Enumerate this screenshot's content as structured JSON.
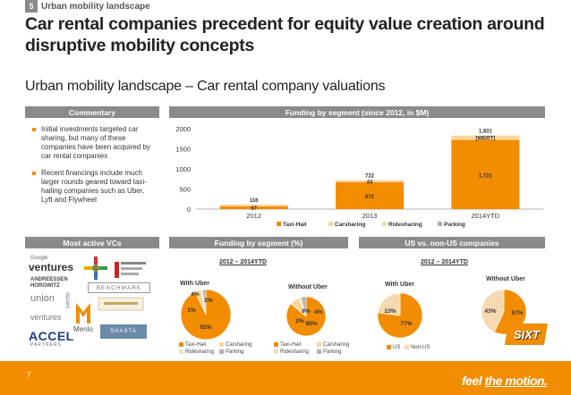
{
  "header": {
    "section_number": "5",
    "section_label": "Urban mobility landscape",
    "title": "Car rental companies precedent for equity value creation around disruptive mobility concepts",
    "subtitle": "Urban mobility landscape – Car rental company valuations"
  },
  "panels": {
    "commentary_header": "Commentary",
    "funding_header": "Funding by segment (since 2012, in $M)",
    "vcs_header": "Most active VCs",
    "funding_pct_header": "Funding by segment (%)",
    "us_header": "US vs. non-US companies"
  },
  "commentary": {
    "bullets": [
      "Initial investments targeted car sharing, but many of these companies have been acquired by car rental companies",
      "Recent financings include much larger rounds geared toward taxi-hailing companies such as Uber, Lyft and Flywheel"
    ]
  },
  "colors": {
    "orange": "#f28c00",
    "grey": "#8a8a8a",
    "light_tan": "#f5d9b0",
    "taxi": "#f28c00",
    "carsharing": "#fbd59c",
    "ridesharing": "#e8e1c0",
    "parking": "#b0b0b0"
  },
  "chart_data": [
    {
      "type": "bar",
      "title": "Funding by segment (since 2012, in $M)",
      "categories": [
        "2012",
        "2013",
        "2014YTD"
      ],
      "ylim": [
        0,
        2000
      ],
      "yticks": [
        0,
        500,
        1000,
        1500,
        2000
      ],
      "series": [
        {
          "name": "Taxi-Hail",
          "values": [
            67,
            672,
            1721
          ]
        },
        {
          "name": "Carsharing",
          "values": [
            49,
            44,
            110
          ]
        },
        {
          "name": "Ridesharing",
          "values": [
            0,
            6,
            0
          ]
        },
        {
          "name": "Parking",
          "values": [
            0,
            0,
            0
          ]
        }
      ],
      "totals": [
        "116",
        "722",
        "1,831"
      ],
      "segment_labels": {
        "taxi": [
          "67",
          "672",
          "1,721"
        ],
        "carsharing": [
          "",
          "44",
          "[WERT]"
        ]
      },
      "legend": [
        "Taxi-Hail",
        "Carsharing",
        "Ridesharing",
        "Parking"
      ]
    },
    {
      "type": "pie",
      "title": "With Uber",
      "period": "2012 – 2014YTD",
      "labels": [
        "Taxi-Hail",
        "Carsharing",
        "Ridesharing",
        "Parking"
      ],
      "values": [
        92,
        4,
        1,
        2
      ],
      "value_labels": [
        "92%",
        "4%",
        "1%",
        "2%"
      ]
    },
    {
      "type": "pie",
      "title": "Without Uber",
      "labels": [
        "Taxi-Hail",
        "Carsharing",
        "Ridesharing",
        "Parking"
      ],
      "values": [
        86,
        8,
        2,
        4
      ],
      "value_labels": [
        "86%",
        "8%",
        "2%",
        "4%"
      ]
    },
    {
      "type": "pie",
      "title": "With Uber",
      "period": "2012 – 2014YTD",
      "labels": [
        "US",
        "Non-US"
      ],
      "values": [
        77,
        23
      ],
      "value_labels": [
        "77%",
        "23%"
      ]
    },
    {
      "type": "pie",
      "title": "Without Uber",
      "labels": [
        "US",
        "Non-US"
      ],
      "values": [
        57,
        43
      ],
      "value_labels": [
        "57%",
        "43%"
      ]
    }
  ],
  "pie_legend_segments": {
    "taxi": "Taxi-Hail",
    "carsharing": "Carsharing",
    "ridesharing": "Ridesharing",
    "parking": "Parking"
  },
  "pie_legend_us": {
    "us": "US",
    "nonus": "Non-US"
  },
  "vcs": {
    "google": "Google",
    "ventures": "ventures",
    "andreessen": "ANDREESSEN HOROWITZ",
    "benchmark": "BENCHMARK",
    "union": "union",
    "square": "square",
    "union_ventures": "ventures",
    "menlo": "Menlo",
    "accel": "ACCEL",
    "accel_sub": "PARTNERS",
    "shasta": "SHASTA"
  },
  "footer": {
    "page_number": "7",
    "brand": "SIXT",
    "slogan_a": "feel",
    "slogan_b": "the motion."
  }
}
